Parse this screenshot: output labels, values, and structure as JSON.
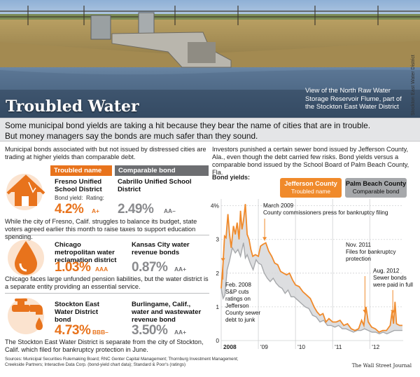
{
  "hero": {
    "title": "Troubled Water",
    "caption": "View of the North Raw Water Storage Reservoir Flume, part of the Stockton East Water District",
    "credit": "Stockton East Water District"
  },
  "intro": {
    "line1": "Some municipal bond yields are taking a hit because they bear the name of cities that are in trouble.",
    "line2": "But money managers say the bonds are much safer than they sound."
  },
  "left": {
    "intro": "Municipal bonds associated with but not issued by distressed cities are trading at higher yields than comparable debt.",
    "header_troubled": "Troubled name",
    "header_comparable": "Comparable bond",
    "bond_yield_label": "Bond yield:",
    "rating_label": "Rating:",
    "rows": [
      {
        "troubled_name": "Fresno Unified School District",
        "troubled_yield": "4.2%",
        "troubled_rating": "A+",
        "comparable_name": "Cabrillo Unified School District",
        "comparable_yield": "2.49%",
        "comparable_rating": "AA–",
        "note": "While the city of Fresno, Calif. struggles to balance its budget, state voters agreed earlier this month to raise taxes to support education spending.",
        "icon": "house-icon"
      },
      {
        "troubled_name": "Chicago metropolitan water reclamation district",
        "troubled_yield": "1.03%",
        "troubled_rating": "AAA",
        "comparable_name": "Kansas City water revenue bonds",
        "comparable_yield": "0.87%",
        "comparable_rating": "AA+",
        "note": "Chicago faces large unfunded pension liabilities, but the water district is a separate entity providing an essential service.",
        "icon": "water-drop-icon"
      },
      {
        "troubled_name": "Stockton East Water District bond",
        "troubled_yield": "4.73%",
        "troubled_rating": "BBB–",
        "comparable_name": "Burlingame, Calif., water and wastewater revenue bond",
        "comparable_yield": "3.50%",
        "comparable_rating": "AA+",
        "note": "The Stockton East Water District is separate from the city of Stockton, Calif. which filed for bankruptcy protection in June.",
        "icon": "faucet-icon"
      }
    ]
  },
  "right": {
    "intro": "Investors punished a certain sewer bond issued by Jefferson County, Ala., even though the debt carried few risks. Bond yields versus a comparable bond issued by the School Board of Palm Beach County, Fla.",
    "bond_yields_label": "Bond yields:"
  },
  "chart_data": {
    "type": "area",
    "x_tick_labels": [
      "2008",
      "'09",
      "'10",
      "'11",
      "'12"
    ],
    "y_tick_labels": [
      "0",
      "1",
      "2",
      "3",
      "4%"
    ],
    "ylim": [
      0,
      4.2
    ],
    "xlim": [
      2008.0,
      2012.9
    ],
    "grid": true,
    "series": [
      {
        "name": "Jefferson County",
        "sub": "Troubled name",
        "color": "#f08a2b",
        "points": [
          [
            2008.0,
            1.55
          ],
          [
            2008.05,
            2.3
          ],
          [
            2008.09,
            3.1
          ],
          [
            2008.13,
            3.05
          ],
          [
            2008.18,
            3.75
          ],
          [
            2008.22,
            3.2
          ],
          [
            2008.27,
            2.75
          ],
          [
            2008.33,
            3.4
          ],
          [
            2008.38,
            3.15
          ],
          [
            2008.43,
            3.5
          ],
          [
            2008.48,
            3.0
          ],
          [
            2008.52,
            3.85
          ],
          [
            2008.56,
            3.3
          ],
          [
            2008.6,
            3.55
          ],
          [
            2008.65,
            4.05
          ],
          [
            2008.7,
            3.15
          ],
          [
            2008.75,
            3.0
          ],
          [
            2008.8,
            2.7
          ],
          [
            2008.85,
            2.5
          ],
          [
            2008.92,
            2.55
          ],
          [
            2009.0,
            2.5
          ],
          [
            2009.06,
            2.8
          ],
          [
            2009.12,
            2.85
          ],
          [
            2009.2,
            2.9
          ],
          [
            2009.28,
            2.65
          ],
          [
            2009.36,
            2.5
          ],
          [
            2009.44,
            2.3
          ],
          [
            2009.52,
            2.25
          ],
          [
            2009.6,
            2.05
          ],
          [
            2009.68,
            2.0
          ],
          [
            2009.76,
            1.95
          ],
          [
            2009.84,
            2.0
          ],
          [
            2009.92,
            1.8
          ],
          [
            2010.0,
            1.65
          ],
          [
            2010.1,
            1.6
          ],
          [
            2010.2,
            1.45
          ],
          [
            2010.3,
            1.35
          ],
          [
            2010.4,
            1.25
          ],
          [
            2010.5,
            1.0
          ],
          [
            2010.58,
            0.85
          ],
          [
            2010.66,
            0.75
          ],
          [
            2010.74,
            0.8
          ],
          [
            2010.82,
            0.55
          ],
          [
            2010.9,
            0.65
          ],
          [
            2011.0,
            0.55
          ],
          [
            2011.1,
            0.55
          ],
          [
            2011.2,
            0.6
          ],
          [
            2011.3,
            0.45
          ],
          [
            2011.4,
            0.5
          ],
          [
            2011.5,
            0.35
          ],
          [
            2011.6,
            0.3
          ],
          [
            2011.7,
            0.35
          ],
          [
            2011.78,
            0.6
          ],
          [
            2011.84,
            0.45
          ],
          [
            2011.9,
            1.0
          ],
          [
            2011.96,
            0.55
          ],
          [
            2012.05,
            0.4
          ],
          [
            2012.15,
            0.35
          ],
          [
            2012.25,
            0.25
          ],
          [
            2012.35,
            0.3
          ],
          [
            2012.45,
            0.3
          ],
          [
            2012.55,
            0.45
          ],
          [
            2012.6,
            0.85
          ],
          [
            2012.64,
            0.5
          ],
          [
            2012.68,
            1.15
          ],
          [
            2012.72,
            0.5
          ],
          [
            2012.8,
            0.45
          ],
          [
            2012.88,
            0.45
          ]
        ]
      },
      {
        "name": "Palm Beach County",
        "sub": "Comparable bond",
        "color": "#a6a8ab",
        "points": [
          [
            2008.0,
            1.55
          ],
          [
            2008.05,
            1.25
          ],
          [
            2008.1,
            1.35
          ],
          [
            2008.16,
            2.1
          ],
          [
            2008.22,
            2.35
          ],
          [
            2008.3,
            2.75
          ],
          [
            2008.38,
            2.6
          ],
          [
            2008.45,
            2.7
          ],
          [
            2008.52,
            2.5
          ],
          [
            2008.6,
            2.9
          ],
          [
            2008.65,
            2.45
          ],
          [
            2008.7,
            2.55
          ],
          [
            2008.78,
            2.3
          ],
          [
            2008.86,
            2.1
          ],
          [
            2008.94,
            2.4
          ],
          [
            2009.0,
            2.3
          ],
          [
            2009.08,
            2.25
          ],
          [
            2009.16,
            2.0
          ],
          [
            2009.24,
            1.85
          ],
          [
            2009.32,
            1.75
          ],
          [
            2009.4,
            1.85
          ],
          [
            2009.48,
            1.7
          ],
          [
            2009.56,
            1.6
          ],
          [
            2009.64,
            1.55
          ],
          [
            2009.72,
            1.4
          ],
          [
            2009.8,
            1.5
          ],
          [
            2009.88,
            1.3
          ],
          [
            2009.96,
            1.3
          ],
          [
            2010.06,
            1.2
          ],
          [
            2010.16,
            1.1
          ],
          [
            2010.26,
            1.0
          ],
          [
            2010.36,
            0.95
          ],
          [
            2010.46,
            0.75
          ],
          [
            2010.56,
            0.7
          ],
          [
            2010.66,
            0.55
          ],
          [
            2010.76,
            0.6
          ],
          [
            2010.86,
            0.45
          ],
          [
            2010.96,
            0.45
          ],
          [
            2011.06,
            0.4
          ],
          [
            2011.16,
            0.45
          ],
          [
            2011.26,
            0.35
          ],
          [
            2011.36,
            0.35
          ],
          [
            2011.46,
            0.3
          ],
          [
            2011.56,
            0.25
          ],
          [
            2011.66,
            0.3
          ],
          [
            2011.76,
            0.3
          ],
          [
            2011.86,
            0.35
          ],
          [
            2011.96,
            0.3
          ],
          [
            2012.06,
            0.25
          ],
          [
            2012.16,
            0.25
          ],
          [
            2012.26,
            0.2
          ],
          [
            2012.36,
            0.25
          ],
          [
            2012.46,
            0.2
          ],
          [
            2012.56,
            0.25
          ],
          [
            2012.66,
            0.3
          ],
          [
            2012.76,
            0.3
          ],
          [
            2012.88,
            0.3
          ]
        ]
      }
    ],
    "annotations": [
      {
        "x": 2008.05,
        "text": [
          "Feb. 2008",
          "S&P cuts",
          "ratings on",
          "Jefferson",
          "County sewer",
          "debt to junk"
        ]
      },
      {
        "x": 2009.17,
        "text": [
          "March 2009",
          "County commissioners press for bankruptcy filing"
        ]
      },
      {
        "x": 2011.87,
        "text": [
          "Nov. 2011",
          "Files for bankruptcy",
          "protection"
        ]
      },
      {
        "x": 2012.62,
        "text": [
          "Aug. 2012",
          "Sewer bonds",
          "were paid in full"
        ]
      }
    ]
  },
  "footer": {
    "sources_line1": "Sources: Municipal Securities Rulemaking Board; RNC Genter Capital Management; Thornburg Investment Management;",
    "sources_line2": "Creekside Partners; Interactive Data Corp. (bond-yield chart data); Standard & Poor's (ratings)",
    "publisher": "The Wall Street Journal"
  }
}
